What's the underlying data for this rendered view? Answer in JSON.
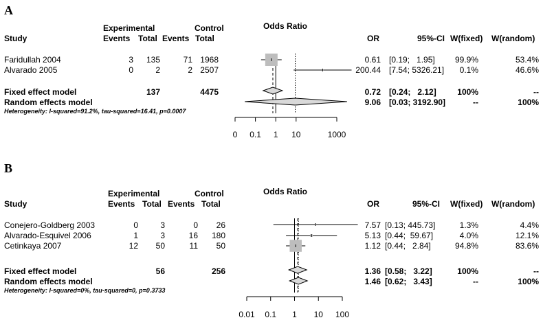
{
  "chart_data": [
    {
      "type": "forest",
      "panel_label": "A",
      "plot_title": "Odds Ratio",
      "header": {
        "experimental": "Experimental",
        "control": "Control",
        "study": "Study",
        "events": "Events",
        "total": "Total",
        "or": "OR",
        "ci": "95%-CI",
        "w_fixed": "W(fixed)",
        "w_random": "W(random)"
      },
      "x_scale": "log10",
      "xlim": [
        0.01,
        1000
      ],
      "x_ticks": [
        0.01,
        0.1,
        1,
        10,
        1000
      ],
      "x_tick_labels": [
        "0",
        "0.1",
        "1",
        "10",
        "1000"
      ],
      "studies": [
        {
          "name": "Faridullah 2004",
          "e_events": "3",
          "e_total": "135",
          "c_events": "71",
          "c_total": "1968",
          "or": 0.61,
          "lo": 0.19,
          "hi": 1.95,
          "or_text": "0.61",
          "ci_text": "[0.19;   1.95]",
          "wf": "99.9%",
          "wr": "53.4%"
        },
        {
          "name": "Alvarado 2005",
          "e_events": "0",
          "e_total": "2",
          "c_events": "2",
          "c_total": "2507",
          "or": 200.44,
          "lo": 7.54,
          "hi": 5326.21,
          "or_text": "200.44",
          "ci_text": "[7.54; 5326.21]",
          "wf": "0.1%",
          "wr": "46.6%"
        }
      ],
      "fixed": {
        "label": "Fixed effect model",
        "e_total": "137",
        "c_total": "4475",
        "or": 0.72,
        "lo": 0.24,
        "hi": 2.12,
        "or_text": "0.72",
        "ci_text": "[0.24;   2.12]",
        "wf": "100%",
        "wr": "--"
      },
      "random": {
        "label": "Random effects model",
        "or": 9.06,
        "lo": 0.03,
        "hi": 3192.9,
        "or_text": "9.06",
        "ci_text": "[0.03; 3192.90]",
        "wf": "--",
        "wr": "100%"
      },
      "heterogeneity": "Heterogeneity: I-squared=91.2%, tau-squared=16.41, p=0.0007"
    },
    {
      "type": "forest",
      "panel_label": "B",
      "plot_title": "Odds Ratio",
      "header": {
        "experimental": "Experimental",
        "control": "Control",
        "study": "Study",
        "events": "Events",
        "total": "Total",
        "or": "OR",
        "ci": "95%-CI",
        "w_fixed": "W(fixed)",
        "w_random": "W(random)"
      },
      "x_scale": "log10",
      "xlim": [
        0.01,
        100
      ],
      "x_ticks": [
        0.01,
        0.1,
        1,
        10,
        100
      ],
      "x_tick_labels": [
        "0.01",
        "0.1",
        "1",
        "10",
        "100"
      ],
      "studies": [
        {
          "name": "Conejero-Goldberg 2003",
          "e_events": "0",
          "e_total": "3",
          "c_events": "0",
          "c_total": "26",
          "or": 7.57,
          "lo": 0.13,
          "hi": 445.73,
          "or_text": "7.57",
          "ci_text": "[0.13; 445.73]",
          "wf": "1.3%",
          "wr": "4.4%"
        },
        {
          "name": "Alvarado-Esquivel 2006",
          "e_events": "1",
          "e_total": "3",
          "c_events": "16",
          "c_total": "180",
          "or": 5.13,
          "lo": 0.44,
          "hi": 59.67,
          "or_text": "5.13",
          "ci_text": "[0.44;  59.67]",
          "wf": "4.0%",
          "wr": "12.1%"
        },
        {
          "name": "Cetinkaya 2007",
          "e_events": "12",
          "e_total": "50",
          "c_events": "11",
          "c_total": "50",
          "or": 1.12,
          "lo": 0.44,
          "hi": 2.84,
          "or_text": "1.12",
          "ci_text": "[0.44;   2.84]",
          "wf": "94.8%",
          "wr": "83.6%"
        }
      ],
      "fixed": {
        "label": "Fixed effect model",
        "e_total": "56",
        "c_total": "256",
        "or": 1.36,
        "lo": 0.58,
        "hi": 3.22,
        "or_text": "1.36",
        "ci_text": "[0.58;   3.22]",
        "wf": "100%",
        "wr": "--"
      },
      "random": {
        "label": "Random effects model",
        "or": 1.46,
        "lo": 0.62,
        "hi": 3.43,
        "or_text": "1.46",
        "ci_text": "[0.62;   3.43]",
        "wf": "--",
        "wr": "100%"
      },
      "heterogeneity": "Heterogeneity: I-squared=0%, tau-squared=0, p=0.3733"
    }
  ]
}
